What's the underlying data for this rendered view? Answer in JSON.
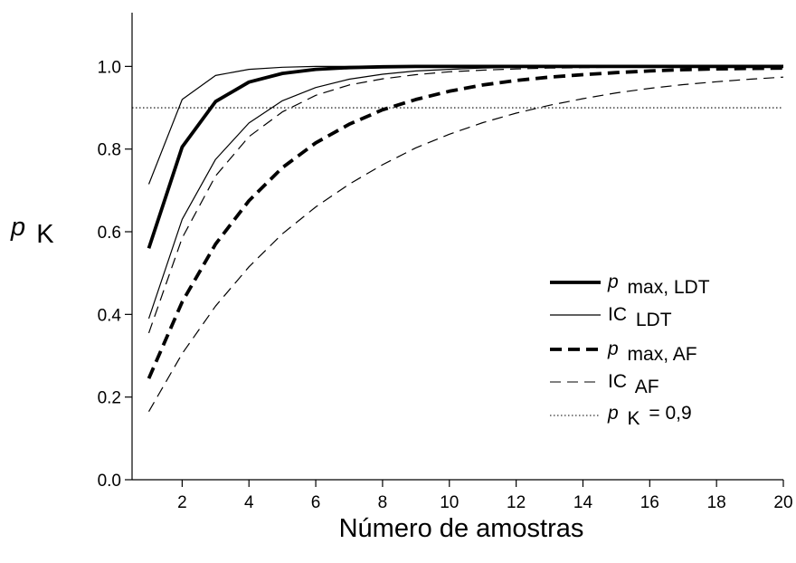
{
  "chart_data": {
    "type": "line",
    "xlabel": "Número de amostras",
    "ylabel": {
      "main": "p",
      "sub": "K"
    },
    "xlim": [
      0.5,
      20
    ],
    "ylim": [
      0.0,
      1.13
    ],
    "x_ticks": [
      2,
      4,
      6,
      8,
      10,
      12,
      14,
      16,
      18,
      20
    ],
    "x_tick_labels": [
      "2",
      "4",
      "6",
      "8",
      "10",
      "12",
      "14",
      "16",
      "18",
      "20"
    ],
    "y_ticks": [
      0.0,
      0.2,
      0.4,
      0.6,
      0.8,
      1.0
    ],
    "y_tick_labels": [
      "0.0",
      "0.2",
      "0.4",
      "0.6",
      "0.8",
      "1.0"
    ],
    "grid": false,
    "legend_position": "lower-right",
    "reference_line": {
      "y": 0.9,
      "style": "dotted"
    },
    "x": [
      1,
      2,
      3,
      4,
      5,
      6,
      7,
      8,
      9,
      10,
      11,
      12,
      13,
      14,
      15,
      16,
      17,
      18,
      19,
      20
    ],
    "series": [
      {
        "key": "pmax_ldt",
        "main": "p",
        "sub": "max, LDT",
        "style": "solid",
        "weight": "bold",
        "values": [
          0.56,
          0.805,
          0.915,
          0.962,
          0.983,
          0.993,
          0.997,
          0.999,
          1.0,
          1.0,
          1.0,
          1.0,
          1.0,
          1.0,
          1.0,
          1.0,
          1.0,
          1.0,
          1.0,
          1.0
        ]
      },
      {
        "key": "ic_ldt_upper",
        "main": "IC",
        "sub": "LDT",
        "style": "solid",
        "weight": "thin",
        "in_legend": true,
        "values": [
          0.715,
          0.92,
          0.978,
          0.993,
          0.998,
          1.0,
          1.0,
          1.0,
          1.0,
          1.0,
          1.0,
          1.0,
          1.0,
          1.0,
          1.0,
          1.0,
          1.0,
          1.0,
          1.0,
          1.0
        ]
      },
      {
        "key": "ic_ldt_lower",
        "style": "solid",
        "weight": "thin",
        "in_legend": false,
        "values": [
          0.39,
          0.63,
          0.775,
          0.863,
          0.917,
          0.949,
          0.969,
          0.981,
          0.989,
          0.993,
          0.996,
          0.998,
          0.999,
          0.999,
          1.0,
          1.0,
          1.0,
          1.0,
          1.0,
          1.0
        ]
      },
      {
        "key": "pmax_af",
        "main": "p",
        "sub": "max, AF",
        "style": "dashed",
        "weight": "bold",
        "values": [
          0.245,
          0.43,
          0.57,
          0.675,
          0.755,
          0.815,
          0.86,
          0.895,
          0.92,
          0.94,
          0.955,
          0.966,
          0.974,
          0.98,
          0.985,
          0.989,
          0.992,
          0.994,
          0.995,
          0.996
        ]
      },
      {
        "key": "ic_af_upper",
        "main": "IC",
        "sub": "AF",
        "style": "dashed",
        "weight": "thin",
        "in_legend": true,
        "values": [
          0.355,
          0.585,
          0.735,
          0.83,
          0.89,
          0.93,
          0.955,
          0.97,
          0.98,
          0.987,
          0.991,
          0.994,
          0.996,
          0.997,
          0.998,
          0.999,
          0.999,
          1.0,
          1.0,
          1.0
        ]
      },
      {
        "key": "ic_af_lower",
        "style": "dashed",
        "weight": "thin",
        "in_legend": false,
        "values": [
          0.165,
          0.305,
          0.42,
          0.515,
          0.595,
          0.66,
          0.715,
          0.762,
          0.803,
          0.836,
          0.864,
          0.887,
          0.906,
          0.922,
          0.936,
          0.947,
          0.956,
          0.963,
          0.969,
          0.974
        ]
      }
    ],
    "legend": [
      {
        "series": "pmax_ldt",
        "main": "p",
        "sub": "max, LDT"
      },
      {
        "series": "ic_ldt_upper",
        "main": "IC",
        "sub": "LDT"
      },
      {
        "series": "pmax_af",
        "main": "p",
        "sub": "max, AF"
      },
      {
        "series": "ic_af_upper",
        "main": "IC",
        "sub": "AF"
      },
      {
        "series": "reference",
        "main": "p",
        "sub": "K",
        "suffix": "= 0,9"
      }
    ]
  }
}
